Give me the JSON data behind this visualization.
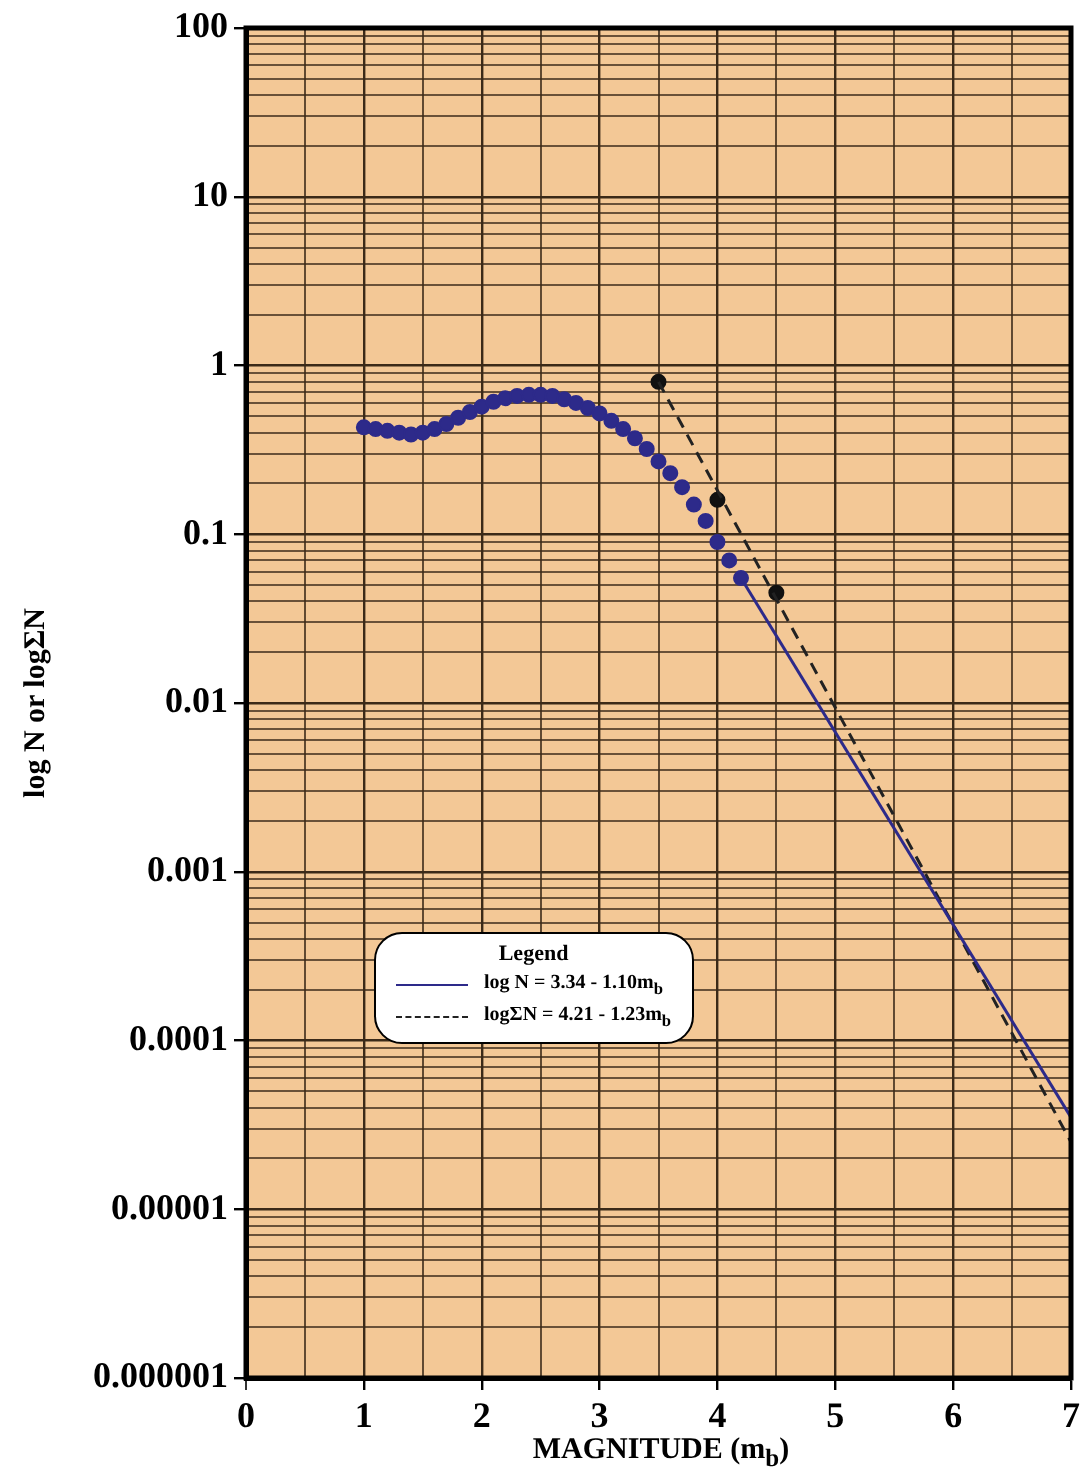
{
  "chart_data": {
    "type": "scatter",
    "xlabel": "MAGNITUDE (m$_{b}$)",
    "ylabel": "log N or logΣN",
    "legend_title": "Legend",
    "legend": "left",
    "log": "y",
    "grid": true,
    "xlim": [
      0,
      7
    ],
    "xticks": [
      0,
      {
        "value": 0.5,
        "label": null
      },
      1,
      {
        "value": 1.5,
        "label": null
      },
      2,
      {
        "value": 2.5,
        "label": null
      },
      3,
      {
        "value": 3.5,
        "label": null
      },
      4,
      {
        "value": 4.5,
        "label": null
      },
      5,
      {
        "value": 5.5,
        "label": null
      },
      6,
      {
        "value": 6.5,
        "label": null
      },
      7
    ],
    "ylim": [
      1e-06,
      100
    ],
    "yticks": [
      {
        "value": 1e-06,
        "label": "0.000001"
      },
      {
        "value": 2e-06,
        "label": null
      },
      {
        "value": 3e-06,
        "label": null
      },
      {
        "value": 4e-06,
        "label": null
      },
      {
        "value": 5e-06,
        "label": null
      },
      {
        "value": 6e-06,
        "label": null
      },
      {
        "value": 7e-06,
        "label": null
      },
      {
        "value": 8e-06,
        "label": null
      },
      {
        "value": 9e-06,
        "label": null
      },
      {
        "value": 1e-05,
        "label": "0.00001"
      },
      {
        "value": 2e-05,
        "label": null
      },
      {
        "value": 3e-05,
        "label": null
      },
      {
        "value": 4e-05,
        "label": null
      },
      {
        "value": 5e-05,
        "label": null
      },
      {
        "value": 6e-05,
        "label": null
      },
      {
        "value": 7e-05,
        "label": null
      },
      {
        "value": 8e-05,
        "label": null
      },
      {
        "value": 9e-05,
        "label": null
      },
      0.0001,
      {
        "value": 0.0002,
        "label": null
      },
      {
        "value": 0.0003,
        "label": null
      },
      {
        "value": 0.0004,
        "label": null
      },
      {
        "value": 0.0005,
        "label": null
      },
      {
        "value": 0.0006,
        "label": null
      },
      {
        "value": 0.0007,
        "label": null
      },
      {
        "value": 0.0008,
        "label": null
      },
      {
        "value": 0.0009,
        "label": null
      },
      0.001,
      {
        "value": 0.002,
        "label": null
      },
      {
        "value": 0.003,
        "label": null
      },
      {
        "value": 0.004,
        "label": null
      },
      {
        "value": 0.005,
        "label": null
      },
      {
        "value": 0.006,
        "label": null
      },
      {
        "value": 0.007,
        "label": null
      },
      {
        "value": 0.008,
        "label": null
      },
      {
        "value": 0.009,
        "label": null
      },
      0.01,
      {
        "value": 0.02,
        "label": null
      },
      {
        "value": 0.03,
        "label": null
      },
      {
        "value": 0.04,
        "label": null
      },
      {
        "value": 0.05,
        "label": null
      },
      {
        "value": 0.06,
        "label": null
      },
      {
        "value": 0.07,
        "label": null
      },
      {
        "value": 0.08,
        "label": null
      },
      {
        "value": 0.09,
        "label": null
      },
      0.1,
      {
        "value": 0.2,
        "label": null
      },
      {
        "value": 0.3,
        "label": null
      },
      {
        "value": 0.4,
        "label": null
      },
      {
        "value": 0.5,
        "label": null
      },
      {
        "value": 0.6,
        "label": null
      },
      {
        "value": 0.7,
        "label": null
      },
      {
        "value": 0.8,
        "label": null
      },
      {
        "value": 0.9,
        "label": null
      },
      1,
      {
        "value": 2,
        "label": null
      },
      {
        "value": 3,
        "label": null
      },
      {
        "value": 4,
        "label": null
      },
      {
        "value": 5,
        "label": null
      },
      {
        "value": 6,
        "label": null
      },
      {
        "value": 7,
        "label": null
      },
      {
        "value": 8,
        "label": null
      },
      {
        "value": 9,
        "label": null
      },
      10,
      {
        "value": 20,
        "label": null
      },
      {
        "value": 30,
        "label": null
      },
      {
        "value": 40,
        "label": null
      },
      {
        "value": 50,
        "label": null
      },
      {
        "value": 60,
        "label": null
      },
      {
        "value": 70,
        "label": null
      },
      {
        "value": 80,
        "label": null
      },
      {
        "value": 90,
        "label": null
      },
      100
    ],
    "series": [
      {
        "color": "#2d2a8a",
        "marker": "circle",
        "x": [
          1.0,
          1.1,
          1.2,
          1.3,
          1.4,
          1.5,
          1.6,
          1.7,
          1.8,
          1.9,
          2.0,
          2.1,
          2.2,
          2.3,
          2.4,
          2.5,
          2.6,
          2.7,
          2.8,
          2.9,
          3.0,
          3.1,
          3.2,
          3.3,
          3.4,
          3.5,
          3.6,
          3.7,
          3.8,
          3.9,
          4.0,
          4.1,
          4.2
        ],
        "values": [
          0.43,
          0.42,
          0.41,
          0.4,
          0.39,
          0.4,
          0.42,
          0.45,
          0.49,
          0.53,
          0.57,
          0.61,
          0.64,
          0.66,
          0.67,
          0.67,
          0.66,
          0.63,
          0.6,
          0.56,
          0.52,
          0.47,
          0.42,
          0.37,
          0.32,
          0.27,
          0.23,
          0.19,
          0.15,
          0.12,
          0.09,
          0.07,
          0.055
        ]
      },
      {
        "type": "line",
        "name": "log N = 3.34 - 1.10m$_{b}$",
        "color": "#2d2a8a",
        "line_style": "solid",
        "marker": "none",
        "x": [
          4.2,
          7
        ],
        "values": [
          0.055,
          3.5e-05
        ]
      },
      {
        "type": "line",
        "name": "logΣN = 4.21 - 1.23m$_{b}$",
        "color": "#222222",
        "line_style": "dashed",
        "marker": "none",
        "x": [
          3.5,
          7
        ],
        "values": [
          0.8,
          2.5e-05
        ]
      },
      {
        "color": "#111111",
        "marker": "circle",
        "x": [
          3.5,
          4.0,
          4.5
        ],
        "values": [
          0.8,
          0.16,
          0.045
        ]
      }
    ]
  }
}
